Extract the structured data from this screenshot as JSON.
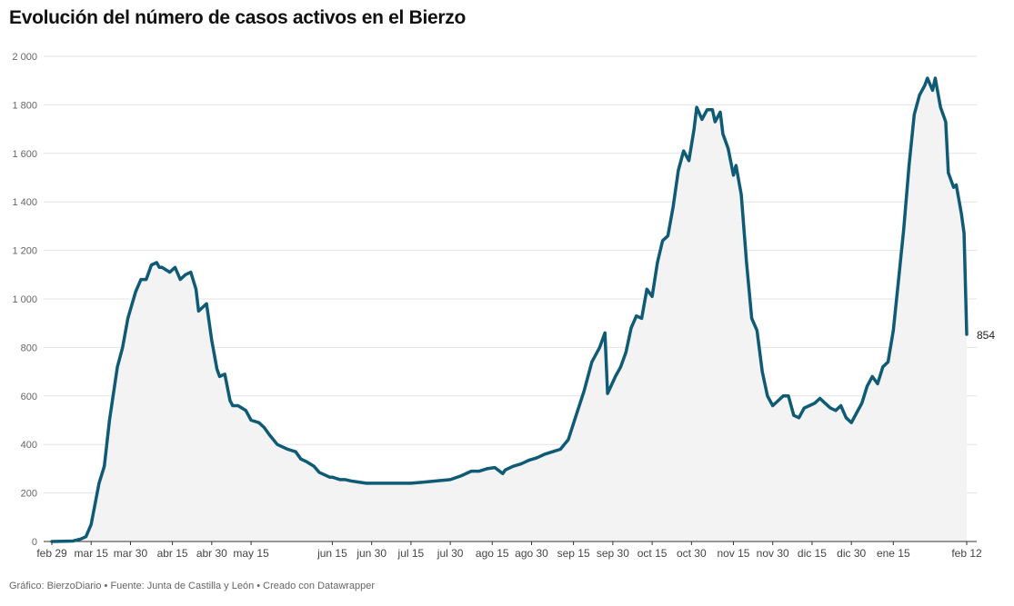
{
  "chart_data": {
    "type": "area",
    "title": "Evolución del número de casos activos en el Bierzo",
    "footer": "Gráfico: BierzoDiario • Fuente: Junta de Castilla y León • Creado con Datawrapper",
    "xlabel": "",
    "ylabel": "",
    "ylim": [
      0,
      2000
    ],
    "grid": true,
    "line_color": "#0f5a75",
    "fill_color": "#f3f3f3",
    "y_ticks": [
      {
        "value": 0,
        "label": "0"
      },
      {
        "value": 200,
        "label": "200"
      },
      {
        "value": 400,
        "label": "400"
      },
      {
        "value": 600,
        "label": "600"
      },
      {
        "value": 800,
        "label": "800"
      },
      {
        "value": 1000,
        "label": "1 000"
      },
      {
        "value": 1200,
        "label": "1 200"
      },
      {
        "value": 1400,
        "label": "1 400"
      },
      {
        "value": 1600,
        "label": "1 600"
      },
      {
        "value": 1800,
        "label": "1 800"
      },
      {
        "value": 2000,
        "label": "2 000"
      }
    ],
    "x_ticks": [
      {
        "date": "2020-02-29",
        "label": "feb 29"
      },
      {
        "date": "2020-03-15",
        "label": "mar 15"
      },
      {
        "date": "2020-03-30",
        "label": "mar 30"
      },
      {
        "date": "2020-04-15",
        "label": "abr 15"
      },
      {
        "date": "2020-04-30",
        "label": "abr 30"
      },
      {
        "date": "2020-05-15",
        "label": "may 15"
      },
      {
        "date": "2020-06-15",
        "label": "jun 15"
      },
      {
        "date": "2020-06-30",
        "label": "jun 30"
      },
      {
        "date": "2020-07-15",
        "label": "jul 15"
      },
      {
        "date": "2020-07-30",
        "label": "jul 30"
      },
      {
        "date": "2020-08-15",
        "label": "ago 15"
      },
      {
        "date": "2020-08-30",
        "label": "ago 30"
      },
      {
        "date": "2020-09-15",
        "label": "sep 15"
      },
      {
        "date": "2020-09-30",
        "label": "sep 30"
      },
      {
        "date": "2020-10-15",
        "label": "oct 15"
      },
      {
        "date": "2020-10-30",
        "label": "oct 30"
      },
      {
        "date": "2020-11-15",
        "label": "nov 15"
      },
      {
        "date": "2020-11-30",
        "label": "nov 30"
      },
      {
        "date": "2020-12-15",
        "label": "dic 15"
      },
      {
        "date": "2020-12-30",
        "label": "dic 30"
      },
      {
        "date": "2021-01-15",
        "label": "ene 15"
      },
      {
        "date": "2021-02-12",
        "label": "feb 12"
      }
    ],
    "end_label": "854",
    "series": [
      {
        "x": [
          "2020-02-29",
          "2020-03-04",
          "2020-03-08",
          "2020-03-11",
          "2020-03-13",
          "2020-03-15",
          "2020-03-18",
          "2020-03-20",
          "2020-03-22",
          "2020-03-25",
          "2020-03-27",
          "2020-03-29",
          "2020-04-01",
          "2020-04-03",
          "2020-04-05",
          "2020-04-07",
          "2020-04-09",
          "2020-04-10",
          "2020-04-11",
          "2020-04-14",
          "2020-04-16",
          "2020-04-18",
          "2020-04-20",
          "2020-04-22",
          "2020-04-24",
          "2020-04-25",
          "2020-04-27",
          "2020-04-28",
          "2020-04-30",
          "2020-05-02",
          "2020-05-03",
          "2020-05-05",
          "2020-05-07",
          "2020-05-08",
          "2020-05-10",
          "2020-05-13",
          "2020-05-15",
          "2020-05-18",
          "2020-05-20",
          "2020-05-22",
          "2020-05-25",
          "2020-05-27",
          "2020-05-29",
          "2020-06-01",
          "2020-06-03",
          "2020-06-05",
          "2020-06-08",
          "2020-06-10",
          "2020-06-12",
          "2020-06-14",
          "2020-06-15",
          "2020-06-18",
          "2020-06-20",
          "2020-06-22",
          "2020-06-25",
          "2020-06-28",
          "2020-07-01",
          "2020-07-05",
          "2020-07-10",
          "2020-07-15",
          "2020-07-20",
          "2020-07-25",
          "2020-07-30",
          "2020-08-03",
          "2020-08-07",
          "2020-08-10",
          "2020-08-13",
          "2020-08-16",
          "2020-08-19",
          "2020-08-20",
          "2020-08-23",
          "2020-08-26",
          "2020-08-29",
          "2020-09-01",
          "2020-09-04",
          "2020-09-07",
          "2020-09-10",
          "2020-09-13",
          "2020-09-16",
          "2020-09-19",
          "2020-09-22",
          "2020-09-25",
          "2020-09-27",
          "2020-09-28",
          "2020-10-01",
          "2020-10-03",
          "2020-10-05",
          "2020-10-07",
          "2020-10-09",
          "2020-10-11",
          "2020-10-13",
          "2020-10-15",
          "2020-10-17",
          "2020-10-19",
          "2020-10-21",
          "2020-10-23",
          "2020-10-25",
          "2020-10-27",
          "2020-10-29",
          "2020-10-31",
          "2020-11-01",
          "2020-11-03",
          "2020-11-05",
          "2020-11-07",
          "2020-11-08",
          "2020-11-10",
          "2020-11-11",
          "2020-11-13",
          "2020-11-15",
          "2020-11-16",
          "2020-11-18",
          "2020-11-20",
          "2020-11-22",
          "2020-11-24",
          "2020-11-26",
          "2020-11-28",
          "2020-11-30",
          "2020-12-02",
          "2020-12-04",
          "2020-12-06",
          "2020-12-08",
          "2020-12-10",
          "2020-12-12",
          "2020-12-14",
          "2020-12-16",
          "2020-12-18",
          "2020-12-20",
          "2020-12-22",
          "2020-12-24",
          "2020-12-26",
          "2020-12-28",
          "2020-12-30",
          "2021-01-01",
          "2021-01-03",
          "2021-01-05",
          "2021-01-07",
          "2021-01-09",
          "2021-01-11",
          "2021-01-13",
          "2021-01-15",
          "2021-01-17",
          "2021-01-19",
          "2021-01-21",
          "2021-01-23",
          "2021-01-25",
          "2021-01-27",
          "2021-01-28",
          "2021-01-30",
          "2021-01-31",
          "2021-02-02",
          "2021-02-04",
          "2021-02-05",
          "2021-02-07",
          "2021-02-08",
          "2021-02-10",
          "2021-02-11",
          "2021-02-12"
        ],
        "values": [
          0,
          1,
          2,
          10,
          20,
          70,
          240,
          310,
          500,
          720,
          800,
          920,
          1030,
          1080,
          1080,
          1140,
          1150,
          1130,
          1130,
          1110,
          1130,
          1080,
          1100,
          1110,
          1040,
          950,
          970,
          980,
          830,
          710,
          680,
          690,
          580,
          560,
          560,
          540,
          500,
          490,
          470,
          440,
          400,
          390,
          380,
          370,
          340,
          330,
          310,
          285,
          275,
          265,
          265,
          255,
          255,
          250,
          245,
          240,
          240,
          240,
          240,
          240,
          245,
          250,
          255,
          270,
          290,
          290,
          300,
          305,
          280,
          295,
          310,
          320,
          335,
          345,
          360,
          370,
          380,
          420,
          520,
          620,
          740,
          800,
          860,
          610,
          680,
          720,
          780,
          880,
          930,
          920,
          1040,
          1010,
          1150,
          1240,
          1260,
          1380,
          1530,
          1610,
          1570,
          1700,
          1790,
          1740,
          1780,
          1780,
          1730,
          1770,
          1680,
          1620,
          1510,
          1550,
          1430,
          1150,
          920,
          870,
          700,
          600,
          560,
          580,
          600,
          600,
          520,
          510,
          550,
          560,
          570,
          590,
          570,
          550,
          540,
          560,
          510,
          490,
          530,
          570,
          640,
          680,
          650,
          720,
          740,
          870,
          1080,
          1290,
          1550,
          1760,
          1840,
          1880,
          1910,
          1860,
          1910,
          1790,
          1730,
          1520,
          1460,
          1470,
          1350,
          1270,
          854
        ]
      }
    ]
  }
}
